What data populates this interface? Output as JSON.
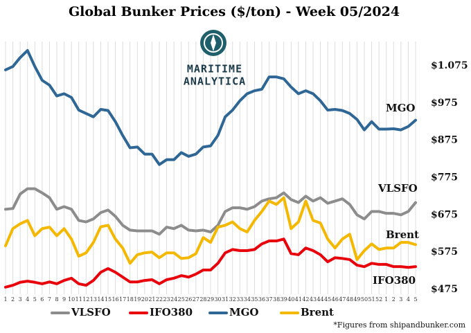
{
  "chart_data": {
    "type": "line",
    "title": "Global Bunker Prices ($/ton) -  Week 05/2024",
    "logo": [
      "MARITIME",
      "ANALYTICA"
    ],
    "source": "*Figures from shipandbunker.com",
    "categories": [
      "1",
      "2",
      "3",
      "4",
      "5",
      "6",
      "7",
      "8",
      "9",
      "10",
      "11",
      "12",
      "13",
      "14",
      "15",
      "16",
      "17",
      "18",
      "19",
      "20",
      "21",
      "22",
      "23",
      "24",
      "25",
      "26",
      "27",
      "28",
      "29",
      "30",
      "31",
      "32",
      "33",
      "34",
      "35",
      "36",
      "37",
      "38",
      "39",
      "40",
      "41",
      "42",
      "43",
      "44",
      "45",
      "46",
      "47",
      "48",
      "49",
      "50",
      "51",
      "52",
      "1",
      "2",
      "3",
      "4",
      "5"
    ],
    "series": [
      {
        "name": "VLSFO",
        "color": "#8c8c8c",
        "values": [
          690,
          692,
          731,
          745,
          745,
          734,
          721,
          690,
          697,
          690,
          660,
          656,
          664,
          681,
          688,
          671,
          647,
          634,
          632,
          632,
          632,
          623,
          642,
          638,
          647,
          634,
          632,
          634,
          629,
          647,
          684,
          694,
          694,
          690,
          697,
          712,
          718,
          721,
          734,
          716,
          708,
          725,
          712,
          721,
          706,
          712,
          718,
          703,
          675,
          664,
          684,
          684,
          679,
          679,
          675,
          684,
          708
        ]
      },
      {
        "name": "IFO380",
        "color": "#e8000b",
        "values": [
          481,
          486,
          494,
          497,
          494,
          490,
          495,
          490,
          499,
          505,
          490,
          486,
          499,
          521,
          531,
          521,
          508,
          495,
          495,
          499,
          501,
          490,
          501,
          505,
          512,
          508,
          516,
          527,
          527,
          545,
          573,
          582,
          579,
          579,
          582,
          597,
          605,
          605,
          610,
          571,
          568,
          586,
          579,
          568,
          549,
          560,
          558,
          555,
          540,
          536,
          545,
          542,
          542,
          536,
          536,
          534,
          536
        ]
      },
      {
        "name": "MGO",
        "color": "#2e6696",
        "values": [
          1064,
          1073,
          1097,
          1116,
          1073,
          1036,
          1023,
          994,
          1000,
          990,
          956,
          947,
          938,
          958,
          955,
          925,
          888,
          855,
          857,
          838,
          838,
          810,
          823,
          823,
          842,
          832,
          838,
          857,
          860,
          888,
          938,
          956,
          981,
          1000,
          1008,
          1012,
          1045,
          1045,
          1040,
          1018,
          1000,
          1008,
          1000,
          981,
          956,
          958,
          955,
          947,
          931,
          903,
          925,
          905,
          905,
          906,
          903,
          912,
          929
        ]
      },
      {
        "name": "Brent",
        "color": "#f5b800",
        "values": [
          592,
          638,
          651,
          660,
          619,
          638,
          642,
          619,
          638,
          610,
          564,
          573,
          601,
          643,
          647,
          610,
          586,
          545,
          568,
          573,
          575,
          560,
          573,
          573,
          558,
          560,
          571,
          614,
          601,
          642,
          647,
          656,
          638,
          629,
          660,
          684,
          712,
          703,
          721,
          638,
          656,
          712,
          660,
          653,
          610,
          586,
          610,
          623,
          555,
          579,
          597,
          582,
          586,
          586,
          601,
          601,
          595
        ]
      }
    ],
    "ylim": [
      462,
      1140
    ],
    "yticks": [
      {
        "value": 1075,
        "label": "$1.075"
      },
      {
        "value": 975,
        "label": "$975"
      },
      {
        "value": 875,
        "label": "$875"
      },
      {
        "value": 775,
        "label": "$775"
      },
      {
        "value": 675,
        "label": "$675"
      },
      {
        "value": 575,
        "label": "$575"
      },
      {
        "value": 475,
        "label": "$475"
      }
    ],
    "xgrid": true
  }
}
